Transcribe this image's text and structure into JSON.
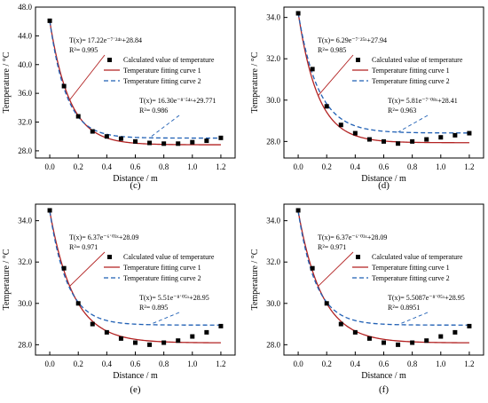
{
  "figure": {
    "background": "#ffffff"
  },
  "colors": {
    "calc": "#000000",
    "curve1": "#b22222",
    "curve2": "#1f5fb4",
    "axis": "#000000"
  },
  "legend": {
    "calc": "Calculated value of temperature",
    "curve1": "Temperature fitting curve 1",
    "curve2": "Temperature fitting curve 2",
    "placement": "upper-right"
  },
  "chart_data": [
    {
      "type": "scatter",
      "panel_label": "(c)",
      "xlabel": "Distance / m",
      "ylabel": "Temperature / °C",
      "xlim": [
        -0.1,
        1.3
      ],
      "ylim": [
        27,
        48
      ],
      "xticks": [
        "0.0",
        "0.2",
        "0.4",
        "0.6",
        "0.8",
        "1.0",
        "1.2"
      ],
      "yticks": [
        "28.0",
        "32.0",
        "36.0",
        "40.0",
        "44.0",
        "48.0"
      ],
      "ytick_values": [
        28,
        32,
        36,
        40,
        44,
        48
      ],
      "points": {
        "x": [
          0,
          0.1,
          0.2,
          0.3,
          0.4,
          0.5,
          0.6,
          0.7,
          0.8,
          0.9,
          1.0,
          1.1,
          1.2
        ],
        "y": [
          46.1,
          37.0,
          32.8,
          30.7,
          30.0,
          29.7,
          29.3,
          29.1,
          29.0,
          29.0,
          29.2,
          29.4,
          29.8
        ]
      },
      "fit1": {
        "a": 17.22,
        "b": -7.24,
        "c": 28.84
      },
      "fit2": {
        "a": 16.3,
        "b": -8.54,
        "c": 29.771
      },
      "annotation1": {
        "line1": "T(x)= 17.22e⁻⁷˙²⁴ˣ+28.84",
        "line2": "R²= 0.995"
      },
      "annotation2": {
        "line1": "T(x)= 16.30e⁻⁸˙⁵⁴ˣ+29.771",
        "line2": "R²= 0.986"
      }
    },
    {
      "type": "scatter",
      "panel_label": "(d)",
      "xlabel": "Distance / m",
      "ylabel": "Temperature / °C",
      "xlim": [
        -0.1,
        1.3
      ],
      "ylim": [
        27.2,
        34.5
      ],
      "xticks": [
        "0.0",
        "0.2",
        "0.4",
        "0.6",
        "0.8",
        "1.0",
        "1.2"
      ],
      "yticks": [
        "28.0",
        "30.0",
        "32.0",
        "34.0"
      ],
      "ytick_values": [
        28,
        30,
        32,
        34
      ],
      "points": {
        "x": [
          0,
          0.1,
          0.2,
          0.3,
          0.4,
          0.5,
          0.6,
          0.7,
          0.8,
          0.9,
          1.0,
          1.1,
          1.2
        ],
        "y": [
          34.2,
          31.5,
          29.7,
          28.8,
          28.4,
          28.1,
          28.0,
          27.9,
          28.0,
          28.1,
          28.2,
          28.3,
          28.4
        ]
      },
      "fit1": {
        "a": 6.29,
        "b": -7.25,
        "c": 27.94
      },
      "fit2": {
        "a": 5.81,
        "b": -7.08,
        "c": 28.41
      },
      "annotation1": {
        "line1": "T(x)= 6.29e⁻⁷˙²⁵ˣ+27.94",
        "line2": "R²= 0.985"
      },
      "annotation2": {
        "line1": "T(x)= 5.81e⁻⁷˙⁰⁸ˣ+28.41",
        "line2": "R²= 0.963"
      }
    },
    {
      "type": "scatter",
      "panel_label": "(e)",
      "xlabel": "Distance / m",
      "ylabel": "Temperature / °C",
      "xlim": [
        -0.1,
        1.3
      ],
      "ylim": [
        27.5,
        34.8
      ],
      "xticks": [
        "0.0",
        "0.2",
        "0.4",
        "0.6",
        "0.8",
        "1.0",
        "1.2"
      ],
      "yticks": [
        "28.0",
        "30.0",
        "32.0",
        "34.0"
      ],
      "ytick_values": [
        28,
        30,
        32,
        34
      ],
      "points": {
        "x": [
          0,
          0.1,
          0.2,
          0.3,
          0.4,
          0.5,
          0.6,
          0.7,
          0.8,
          0.9,
          1.0,
          1.1,
          1.2
        ],
        "y": [
          34.5,
          31.7,
          30.0,
          29.0,
          28.6,
          28.3,
          28.1,
          28.0,
          28.1,
          28.2,
          28.4,
          28.6,
          28.9
        ]
      },
      "fit1": {
        "a": 6.37,
        "b": -6.03,
        "c": 28.09
      },
      "fit2": {
        "a": 5.51,
        "b": -8.05,
        "c": 28.95
      },
      "annotation1": {
        "line1": "T(x)= 6.37e⁻⁶˙⁰³ˣ+28.09",
        "line2": "R²= 0.971"
      },
      "annotation2": {
        "line1": "T(x)= 5.51e⁻⁸˙⁰⁵ˣ+28.95",
        "line2": "R²= 0.895"
      }
    },
    {
      "type": "scatter",
      "panel_label": "(f)",
      "xlabel": "Distance / m",
      "ylabel": "Temperature / °C",
      "xlim": [
        -0.1,
        1.3
      ],
      "ylim": [
        27.5,
        34.8
      ],
      "xticks": [
        "0.0",
        "0.2",
        "0.4",
        "0.6",
        "0.8",
        "1.0",
        "1.2"
      ],
      "yticks": [
        "28.0",
        "30.0",
        "32.0",
        "34.0"
      ],
      "ytick_values": [
        28,
        30,
        32,
        34
      ],
      "points": {
        "x": [
          0,
          0.1,
          0.2,
          0.3,
          0.4,
          0.5,
          0.6,
          0.7,
          0.8,
          0.9,
          1.0,
          1.1,
          1.2
        ],
        "y": [
          34.5,
          31.7,
          30.0,
          29.0,
          28.6,
          28.3,
          28.1,
          28.0,
          28.1,
          28.2,
          28.4,
          28.6,
          28.9
        ]
      },
      "fit1": {
        "a": 6.37,
        "b": -6.03,
        "c": 28.09
      },
      "fit2": {
        "a": 5.5087,
        "b": -8.05,
        "c": 28.95
      },
      "annotation1": {
        "line1": "T(x)= 6.37e⁻⁶˙⁰³ˣ+28.09",
        "line2": "R²= 0.971"
      },
      "annotation2": {
        "line1": "T(x)= 5.5087e⁻⁸˙⁰⁵ˣ+28.95",
        "line2": "R²= 0.8951"
      }
    }
  ]
}
